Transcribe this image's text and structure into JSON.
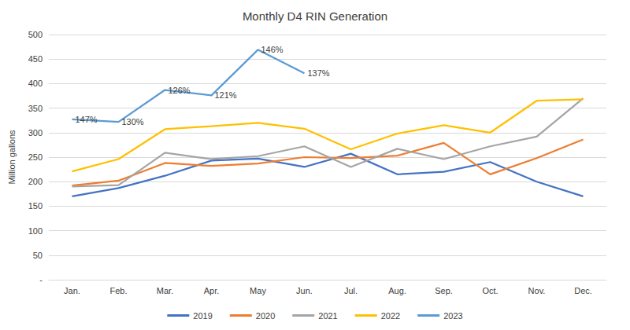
{
  "chart_data": {
    "type": "line",
    "title": "Monthly D4 RIN Generation",
    "y_label": "Million gallons",
    "categories": [
      "Jan.",
      "Feb.",
      "Mar.",
      "Apr.",
      "May",
      "Jun.",
      "Jul.",
      "Aug.",
      "Sep.",
      "Oct.",
      "Nov.",
      "Dec."
    ],
    "series": [
      {
        "name": "2019",
        "color": "#4472c4",
        "values": [
          170,
          187,
          212,
          243,
          247,
          230,
          257,
          215,
          220,
          240,
          200,
          170
        ]
      },
      {
        "name": "2020",
        "color": "#ed7d31",
        "values": [
          192,
          202,
          238,
          232,
          237,
          250,
          248,
          253,
          279,
          215,
          248,
          286
        ]
      },
      {
        "name": "2021",
        "color": "#a5a5a5",
        "values": [
          190,
          193,
          259,
          246,
          252,
          272,
          230,
          267,
          246,
          272,
          292,
          370
        ]
      },
      {
        "name": "2022",
        "color": "#ffc000",
        "values": [
          221,
          246,
          307,
          313,
          320,
          308,
          266,
          298,
          315,
          300,
          365,
          368
        ]
      },
      {
        "name": "2023",
        "color": "#5b9bd5",
        "values": [
          327,
          322,
          387,
          376,
          469,
          421,
          null,
          null,
          null,
          null,
          null,
          null
        ]
      }
    ],
    "annotations": [
      {
        "series": "2023",
        "category": "Jan.",
        "text": "147%"
      },
      {
        "series": "2023",
        "category": "Feb.",
        "text": "130%"
      },
      {
        "series": "2023",
        "category": "Mar.",
        "text": "126%"
      },
      {
        "series": "2023",
        "category": "Apr.",
        "text": "121%"
      },
      {
        "series": "2023",
        "category": "May",
        "text": "146%"
      },
      {
        "series": "2023",
        "category": "Jun.",
        "text": "137%"
      }
    ],
    "ylim": [
      0,
      500
    ],
    "yticks": [
      {
        "value": 0,
        "label": "-"
      },
      50,
      100,
      150,
      200,
      250,
      300,
      350,
      400,
      450,
      500
    ],
    "grid": true,
    "legend": "bottom"
  }
}
